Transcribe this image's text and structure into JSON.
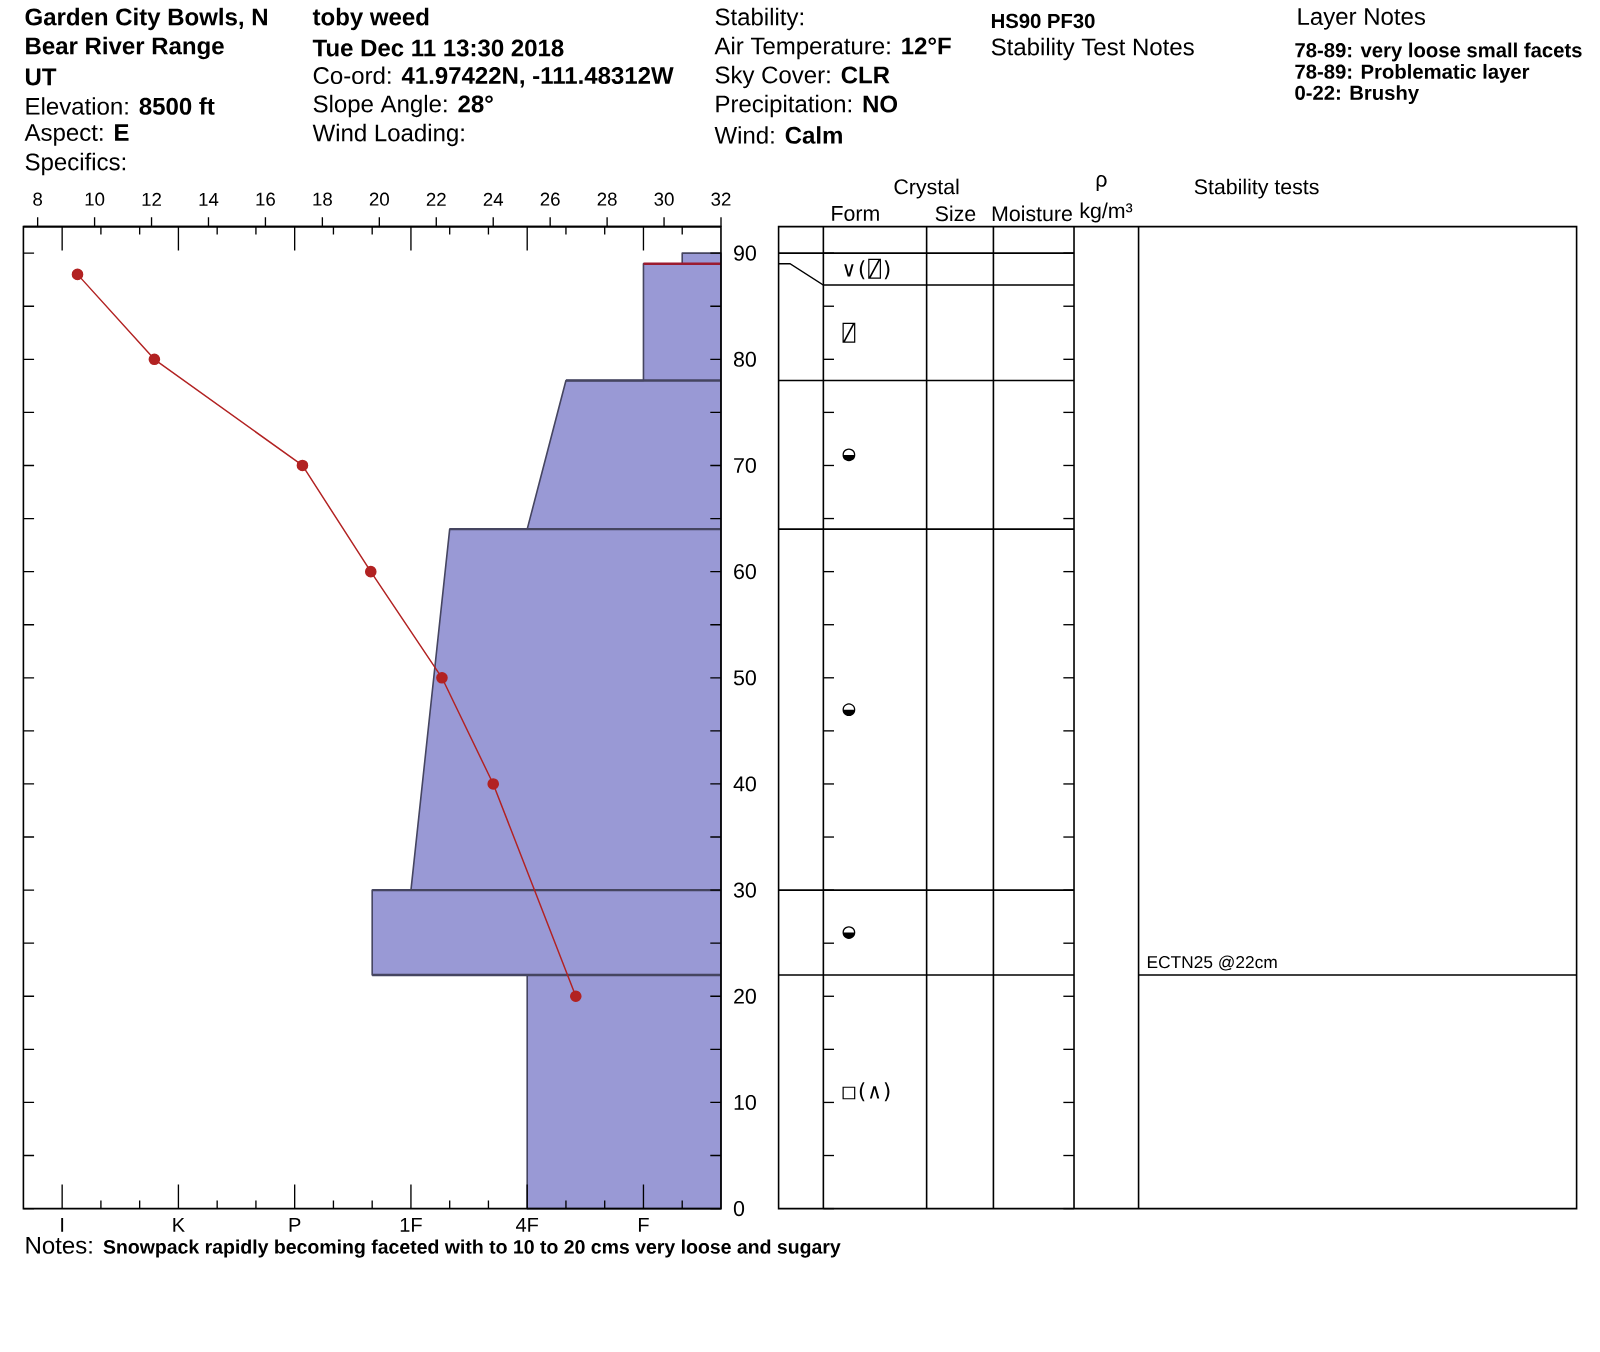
{
  "chart_data": [
    {
      "type": "other",
      "annotations": [
        "Garden City Bowls, N",
        "Bear River Range",
        "UT",
        "Elevation: **8500 ft**",
        "Aspect: **E**",
        "Specifics:",
        "toby weed",
        "Tue Dec 11 13:30 2018",
        "Co-ord: **41.97422N, -111.48312W**",
        "Slope Angle: **28°**",
        "Wind Loading:",
        "Stability:",
        "Air Temperature: **12°F**",
        "Sky Cover: **CLR**",
        "Precipitation: **NO**",
        "Wind: **Calm**",
        "HS90 PF30",
        "Stability Test Notes",
        "Layer Notes",
        "78-89: very loose small facets",
        "78-89: Problematic layer",
        "0-22: Brushy"
      ]
    },
    {
      "type": "line",
      "xlim": [
        -9,
        9
      ],
      "xticks": [
        {
          "value": -8,
          "label": "I"
        },
        {
          "value": -7,
          "label": null
        },
        {
          "value": -6,
          "label": null
        },
        {
          "value": -5,
          "label": "K"
        },
        {
          "value": -4,
          "label": null
        },
        {
          "value": -3,
          "label": null
        },
        {
          "value": -2,
          "label": "P"
        },
        {
          "value": -1,
          "label": null
        },
        {
          "value": 0,
          "label": null
        },
        {
          "value": 1,
          "label": "1F"
        },
        {
          "value": 2,
          "label": null
        },
        {
          "value": 3,
          "label": null
        },
        {
          "value": 4,
          "label": "4F"
        },
        {
          "value": 5,
          "label": null
        },
        {
          "value": 6,
          "label": null
        },
        {
          "value": 7,
          "label": "F"
        },
        {
          "value": 8,
          "label": null
        }
      ],
      "x2lim": [
        7.5,
        32
      ],
      "x2ticks": [
        8,
        10,
        12,
        14,
        16,
        18,
        20,
        22,
        24,
        26,
        28,
        30,
        32
      ],
      "ylim": [
        0,
        92.5
      ],
      "yticks": [
        0,
        {
          "value": 5,
          "label": null
        },
        10,
        {
          "value": 15,
          "label": null
        },
        20,
        {
          "value": 25,
          "label": null
        },
        30,
        {
          "value": 35,
          "label": null
        },
        40,
        {
          "value": 45,
          "label": null
        },
        50,
        {
          "value": 55,
          "label": null
        },
        60,
        {
          "value": 65,
          "label": null
        },
        70,
        {
          "value": 75,
          "label": null
        },
        80,
        {
          "value": 85,
          "label": null
        },
        90
      ],
      "series": [
        {
          "type": "area",
          "color": "#9999d5",
          "x": [
            9,
            4,
            4,
            0,
            0,
            1,
            2,
            4,
            5,
            7,
            7,
            8,
            8,
            9
          ],
          "values": [
            0,
            0,
            22,
            22,
            30,
            30,
            64,
            64,
            78,
            78,
            89,
            89,
            90,
            90
          ]
        },
        {
          "type": "line",
          "color": "#454560",
          "x": [
            0,
            9
          ],
          "values": [
            22,
            22
          ]
        },
        {
          "type": "line",
          "color": "#454560",
          "x": [
            0,
            9
          ],
          "values": [
            30,
            30
          ]
        },
        {
          "type": "line",
          "color": "#454560",
          "x": [
            2,
            9
          ],
          "values": [
            64,
            64
          ]
        },
        {
          "type": "line",
          "color": "#454560",
          "x": [
            5,
            9
          ],
          "values": [
            78,
            78
          ]
        },
        {
          "type": "line",
          "color": "#9b1b30",
          "x": [
            7,
            9
          ],
          "values": [
            89,
            89
          ]
        },
        {
          "type": "line",
          "axis": "x2",
          "color": "#b22222",
          "marker": "circle",
          "x": [
            9.4,
            12.1,
            17.3,
            19.7,
            22.2,
            24.0,
            26.9
          ],
          "values": [
            88,
            80,
            70,
            60,
            50,
            40,
            20
          ]
        }
      ],
      "ref_lines": [
        {
          "axis": "y",
          "value": 22,
          "label": "ECTN25 @22cm"
        }
      ],
      "annotations": [
        "Notes:",
        "Snowpack rapidly becoming faceted with to 10 to 20 cms very loose and sugary",
        "Crystal",
        "Form",
        "Size",
        "Moisture",
        "ρ",
        "kg/m³",
        "Stability tests",
        "∨(⍁)",
        "⍁",
        "◒",
        "◒",
        "◒",
        "□(∧)"
      ]
    }
  ]
}
